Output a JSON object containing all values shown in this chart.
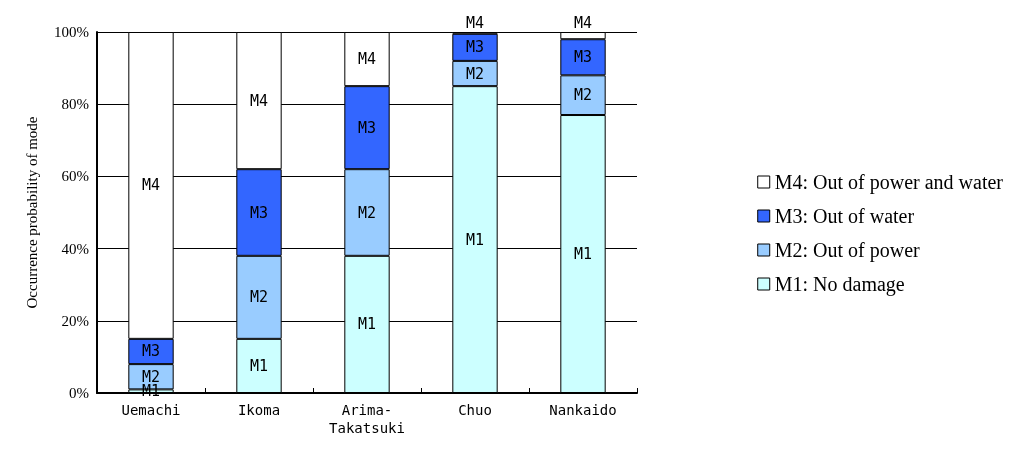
{
  "chart_data": {
    "type": "bar",
    "stacked": true,
    "ylabel": "Occurrence probability of mode",
    "categories": [
      "Uemachi",
      "Ikoma",
      "Arima-Takatsuki",
      "Chuo",
      "Nankaido"
    ],
    "series": [
      {
        "name": "M1: No damage",
        "color": "#ccffff",
        "values": [
          1,
          15,
          38,
          85,
          77
        ],
        "value_labels": [
          "M1",
          "M1",
          "M1",
          "M1",
          "M1"
        ]
      },
      {
        "name": "M2: Out of power",
        "color": "#99ccff",
        "values": [
          7,
          23,
          24,
          7,
          11
        ],
        "value_labels": [
          "M2",
          "M2",
          "M2",
          "M2",
          "M2"
        ]
      },
      {
        "name": "M3: Out of water",
        "color": "#3366ff",
        "values": [
          7,
          24,
          23,
          7.5,
          10
        ],
        "value_labels": [
          "M3",
          "M3",
          "M3",
          "M3",
          "M3"
        ]
      },
      {
        "name": "M4: Out of power and water",
        "color": "#ffffff",
        "values": [
          85,
          38,
          15,
          0.5,
          2
        ],
        "value_labels": [
          "M4",
          "M4",
          "M4",
          "M4",
          "M4"
        ]
      }
    ],
    "ylim": [
      0,
      100
    ],
    "yticks": [
      {
        "value": 0,
        "label": "0%"
      },
      {
        "value": 20,
        "label": "20%"
      },
      {
        "value": 40,
        "label": "40%"
      },
      {
        "value": 60,
        "label": "60%"
      },
      {
        "value": 80,
        "label": "80%"
      },
      {
        "value": 100,
        "label": "100%"
      }
    ],
    "grid": "y",
    "legend": "right"
  }
}
